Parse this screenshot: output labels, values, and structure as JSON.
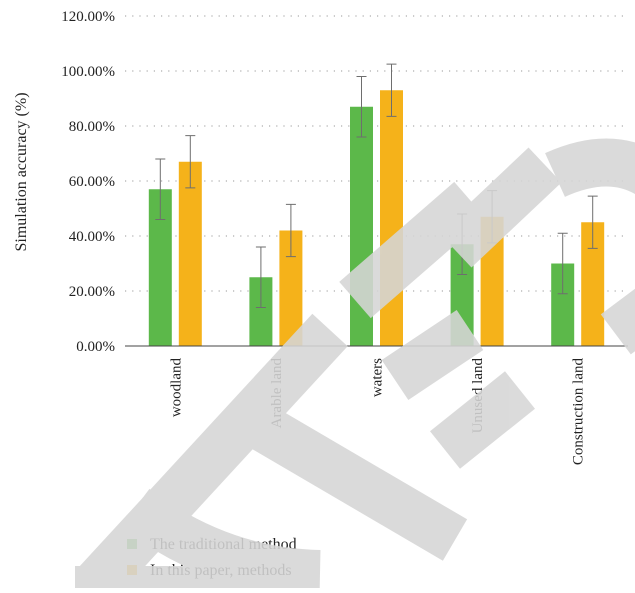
{
  "chart_data": {
    "type": "bar",
    "title": "",
    "xlabel": "",
    "ylabel": "Simulation accuracy (%)",
    "ylim": [
      0,
      120
    ],
    "yticks": [
      "0.00%",
      "20.00%",
      "40.00%",
      "60.00%",
      "80.00%",
      "100.00%",
      "120.00%"
    ],
    "categories": [
      "woodland",
      "Arable land",
      "waters",
      "Unused land",
      "Construction land"
    ],
    "series": [
      {
        "name": "The traditional method",
        "color": "#5cb84a",
        "values": [
          57,
          25,
          87,
          37,
          30
        ],
        "errors": [
          11,
          11,
          11,
          11,
          11
        ]
      },
      {
        "name": "In this paper, methods",
        "color": "#f5b21a",
        "values": [
          67,
          42,
          93,
          47,
          45
        ],
        "errors": [
          9.5,
          9.5,
          9.5,
          9.5,
          9.5
        ]
      }
    ],
    "grid": true,
    "legend_position": "bottom-left",
    "error_bars": true
  },
  "watermark": {
    "text": "RETRACTED",
    "color": "#d9d9d9"
  }
}
